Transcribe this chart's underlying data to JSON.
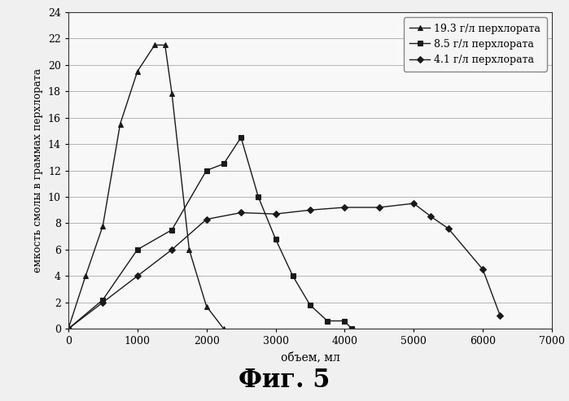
{
  "series": [
    {
      "label": "19.3 г/л перхлората",
      "marker": "^",
      "x": [
        0,
        250,
        500,
        750,
        1000,
        1250,
        1400,
        1500,
        1750,
        2000,
        2250
      ],
      "y": [
        0,
        4.0,
        7.8,
        15.5,
        19.5,
        21.5,
        21.5,
        17.8,
        6.0,
        1.7,
        0
      ]
    },
    {
      "label": "8.5 г/л перхлората",
      "marker": "s",
      "x": [
        0,
        500,
        1000,
        1500,
        2000,
        2250,
        2500,
        2750,
        3000,
        3250,
        3500,
        3750,
        4000,
        4100
      ],
      "y": [
        0,
        2.2,
        6.0,
        7.5,
        12.0,
        12.5,
        14.5,
        10.0,
        6.8,
        4.0,
        1.8,
        0.6,
        0.6,
        0
      ]
    },
    {
      "label": "4.1 г/л перхлората",
      "marker": "D",
      "x": [
        0,
        500,
        1000,
        1500,
        2000,
        2500,
        3000,
        3500,
        4000,
        4500,
        5000,
        5250,
        5500,
        6000,
        6250
      ],
      "y": [
        0,
        2.0,
        4.0,
        6.0,
        8.3,
        8.8,
        8.7,
        9.0,
        9.2,
        9.2,
        9.5,
        8.5,
        7.6,
        4.5,
        1.0
      ]
    }
  ],
  "xlabel": "объем, мл",
  "ylabel": "емкость смолы в граммах перхлората",
  "xlim": [
    0,
    7000
  ],
  "ylim": [
    0,
    24
  ],
  "xticks": [
    0,
    1000,
    2000,
    3000,
    4000,
    5000,
    6000,
    7000
  ],
  "yticks": [
    0,
    2,
    4,
    6,
    8,
    10,
    12,
    14,
    16,
    18,
    20,
    22,
    24
  ],
  "figure_title": "Фиг. 5",
  "line_color": "#1a1a1a",
  "bg_color": "#f0f0f0",
  "plot_bg_color": "#f8f8f8",
  "grid_color": "#aaaaaa",
  "legend_bg": "#f5f5f5"
}
